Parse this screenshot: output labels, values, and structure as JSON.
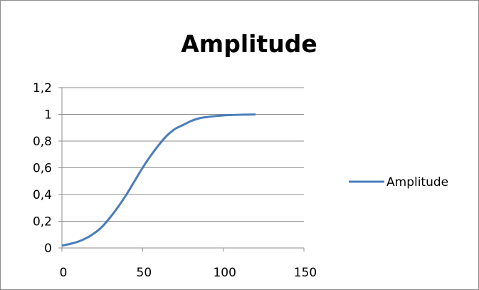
{
  "chart_data": {
    "type": "scatter",
    "title": "Amplitude",
    "xlabel": "",
    "ylabel": "",
    "xlim": [
      0,
      150
    ],
    "ylim": [
      0,
      1.2
    ],
    "x_ticks": [
      "0",
      "50",
      "100",
      "150"
    ],
    "y_ticks": [
      "0",
      "0,2",
      "0,4",
      "0,6",
      "0,8",
      "1",
      "1,2"
    ],
    "grid": "horizontal",
    "legend_position": "right",
    "series": [
      {
        "name": "Amplitude",
        "color": "#4a7ebb",
        "style": "smooth-line",
        "x": [
          0,
          5,
          10,
          15,
          20,
          25,
          30,
          35,
          40,
          45,
          50,
          55,
          60,
          65,
          70,
          75,
          80,
          85,
          90,
          95,
          100,
          105,
          110,
          115,
          120
        ],
        "y": [
          0.018,
          0.03,
          0.047,
          0.073,
          0.11,
          0.16,
          0.23,
          0.31,
          0.4,
          0.5,
          0.6,
          0.69,
          0.77,
          0.84,
          0.89,
          0.92,
          0.95,
          0.97,
          0.98,
          0.987,
          0.992,
          0.995,
          0.997,
          0.998,
          0.999
        ]
      }
    ]
  }
}
